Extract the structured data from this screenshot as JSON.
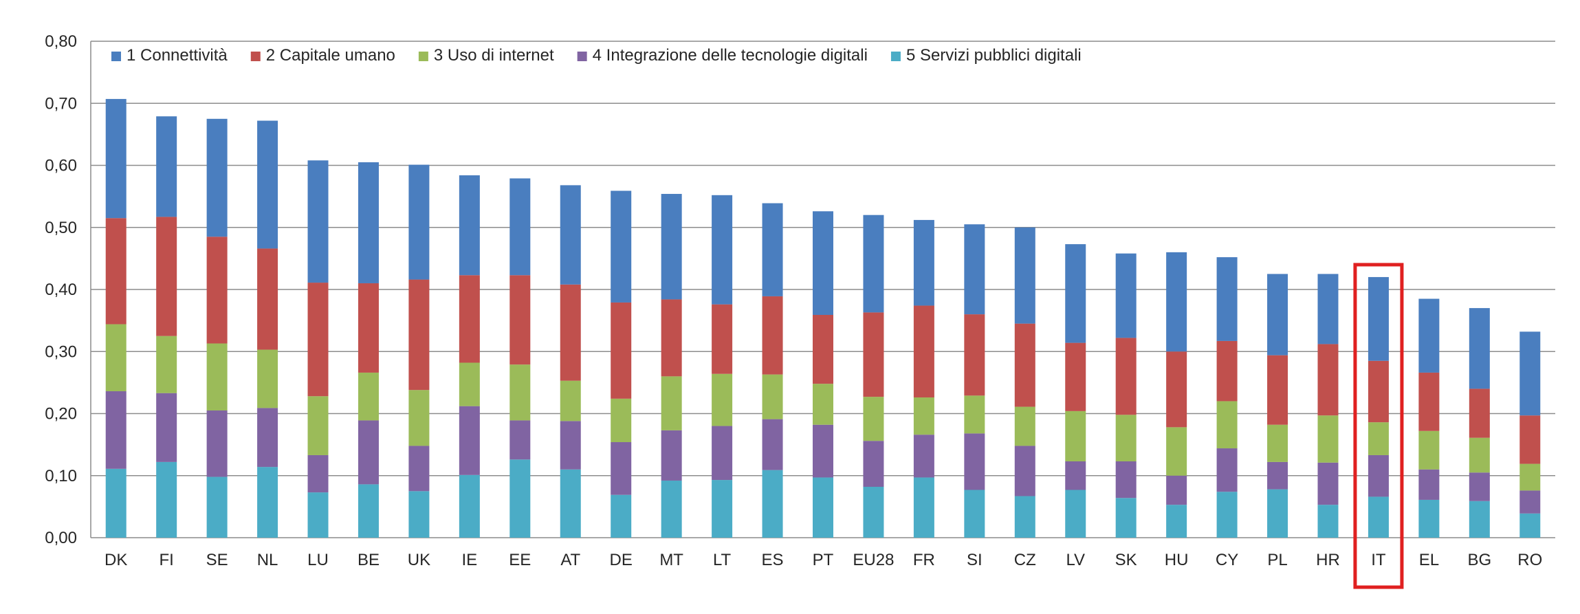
{
  "chart_data": {
    "type": "bar",
    "stacked": true,
    "categories": [
      "DK",
      "FI",
      "SE",
      "NL",
      "LU",
      "BE",
      "UK",
      "IE",
      "EE",
      "AT",
      "DE",
      "MT",
      "LT",
      "ES",
      "PT",
      "EU28",
      "FR",
      "SI",
      "CZ",
      "LV",
      "SK",
      "HU",
      "CY",
      "PL",
      "HR",
      "IT",
      "EL",
      "BG",
      "RO"
    ],
    "series": [
      {
        "name": "1 Connettività",
        "color": "#4a7ebf",
        "values": [
          0.192,
          0.162,
          0.19,
          0.206,
          0.197,
          0.195,
          0.185,
          0.161,
          0.156,
          0.16,
          0.18,
          0.17,
          0.176,
          0.15,
          0.167,
          0.157,
          0.138,
          0.145,
          0.155,
          0.159,
          0.136,
          0.16,
          0.135,
          0.131,
          0.113,
          0.135,
          0.119,
          0.13,
          0.135
        ]
      },
      {
        "name": "2 Capitale umano",
        "color": "#c0504d",
        "values": [
          0.171,
          0.192,
          0.172,
          0.163,
          0.183,
          0.144,
          0.178,
          0.141,
          0.144,
          0.155,
          0.155,
          0.124,
          0.112,
          0.126,
          0.111,
          0.136,
          0.148,
          0.131,
          0.134,
          0.11,
          0.124,
          0.122,
          0.097,
          0.112,
          0.115,
          0.099,
          0.094,
          0.079,
          0.078
        ]
      },
      {
        "name": "3 Uso di internet",
        "color": "#9bbb59",
        "values": [
          0.108,
          0.092,
          0.108,
          0.094,
          0.095,
          0.077,
          0.09,
          0.07,
          0.09,
          0.065,
          0.07,
          0.087,
          0.084,
          0.072,
          0.066,
          0.071,
          0.06,
          0.061,
          0.063,
          0.081,
          0.075,
          0.078,
          0.076,
          0.06,
          0.076,
          0.053,
          0.062,
          0.056,
          0.043
        ]
      },
      {
        "name": "4 Integrazione delle tecnologie digitali",
        "color": "#8064a2",
        "values": [
          0.125,
          0.111,
          0.107,
          0.095,
          0.06,
          0.103,
          0.073,
          0.111,
          0.063,
          0.078,
          0.085,
          0.081,
          0.087,
          0.082,
          0.085,
          0.074,
          0.069,
          0.091,
          0.081,
          0.046,
          0.059,
          0.047,
          0.07,
          0.044,
          0.068,
          0.067,
          0.049,
          0.046,
          0.037
        ]
      },
      {
        "name": "5 Servizi pubblici digitali",
        "color": "#4bacc6",
        "values": [
          0.111,
          0.122,
          0.098,
          0.114,
          0.073,
          0.086,
          0.075,
          0.101,
          0.126,
          0.11,
          0.069,
          0.092,
          0.093,
          0.109,
          0.097,
          0.082,
          0.097,
          0.077,
          0.067,
          0.077,
          0.064,
          0.053,
          0.074,
          0.078,
          0.053,
          0.066,
          0.061,
          0.059,
          0.039
        ]
      }
    ],
    "ylim": [
      0,
      0.8
    ],
    "yticks": [
      "0,00",
      "0,10",
      "0,20",
      "0,30",
      "0,40",
      "0,50",
      "0,60",
      "0,70",
      "0,80"
    ],
    "grid": true,
    "legend_position": "top-left",
    "highlight_category": "IT",
    "highlight_color": "#e02020"
  }
}
